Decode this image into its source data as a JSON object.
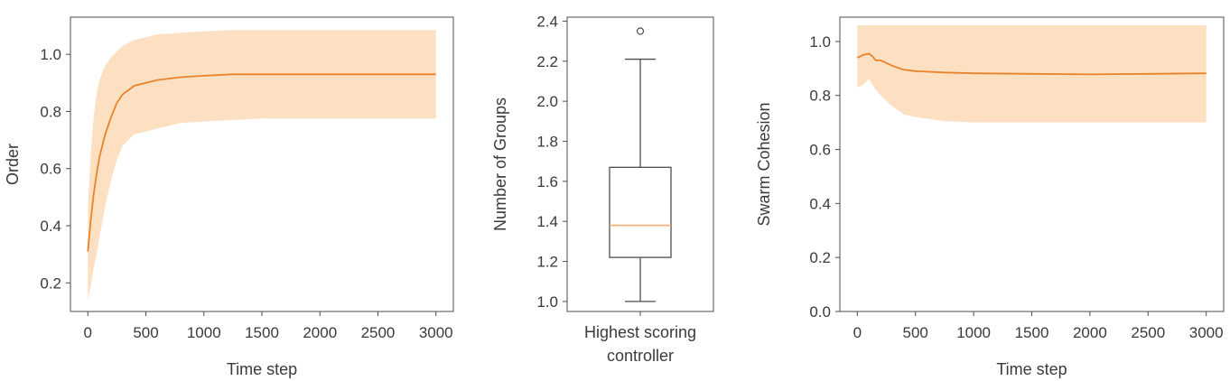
{
  "colors": {
    "line": "#e8832a",
    "band": "#fde0c2",
    "median": "#f5b27a",
    "axis": "#4d4d4d",
    "text": "#3a3a3a"
  },
  "chart_data": [
    {
      "type": "line",
      "xlabel": "Time step",
      "ylabel": "Order",
      "xlim": [
        -150,
        3150
      ],
      "ylim": [
        0.1,
        1.13
      ],
      "xticks": [
        0,
        500,
        1000,
        1500,
        2000,
        2500,
        3000
      ],
      "yticks": [
        0.2,
        0.4,
        0.6,
        0.8,
        1.0
      ],
      "x": [
        0,
        25,
        50,
        75,
        100,
        150,
        200,
        250,
        300,
        400,
        500,
        600,
        800,
        1000,
        1250,
        1500,
        2000,
        2500,
        3000
      ],
      "mean": [
        0.31,
        0.42,
        0.51,
        0.58,
        0.64,
        0.72,
        0.78,
        0.83,
        0.86,
        0.89,
        0.9,
        0.91,
        0.92,
        0.925,
        0.93,
        0.93,
        0.93,
        0.93,
        0.93
      ],
      "upper": [
        0.47,
        0.65,
        0.78,
        0.86,
        0.91,
        0.96,
        0.99,
        1.01,
        1.03,
        1.05,
        1.06,
        1.07,
        1.075,
        1.08,
        1.085,
        1.085,
        1.085,
        1.085,
        1.085
      ],
      "lower": [
        0.14,
        0.19,
        0.25,
        0.3,
        0.36,
        0.47,
        0.56,
        0.63,
        0.68,
        0.72,
        0.73,
        0.74,
        0.76,
        0.765,
        0.77,
        0.775,
        0.775,
        0.775,
        0.775
      ],
      "grid": false
    },
    {
      "type": "box",
      "xlabel_lines": [
        "Highest scoring",
        "controller"
      ],
      "ylabel": "Number of Groups",
      "ylim": [
        0.95,
        2.42
      ],
      "yticks": [
        "1.0",
        "1.2",
        "1.4",
        "1.6",
        "1.8",
        "2.0",
        "2.2",
        "2.4"
      ],
      "box": {
        "min": 1.0,
        "q1": 1.22,
        "median": 1.38,
        "q3": 1.67,
        "max": 2.21,
        "outliers": [
          2.35
        ]
      },
      "grid": false
    },
    {
      "type": "line",
      "xlabel": "Time step",
      "ylabel": "Swarm Cohesion",
      "xlim": [
        -150,
        3150
      ],
      "ylim": [
        0.0,
        1.09
      ],
      "xticks": [
        0,
        500,
        1000,
        1500,
        2000,
        2500,
        3000
      ],
      "yticks": [
        "0.0",
        "0.2",
        "0.4",
        "0.6",
        "0.8",
        "1.0"
      ],
      "x": [
        0,
        50,
        100,
        130,
        160,
        200,
        250,
        300,
        400,
        500,
        750,
        1000,
        1500,
        2000,
        2500,
        3000
      ],
      "mean": [
        0.94,
        0.95,
        0.955,
        0.945,
        0.93,
        0.93,
        0.92,
        0.91,
        0.895,
        0.89,
        0.885,
        0.882,
        0.88,
        0.878,
        0.88,
        0.882
      ],
      "upper": [
        1.06,
        1.06,
        1.06,
        1.06,
        1.06,
        1.06,
        1.06,
        1.06,
        1.06,
        1.06,
        1.06,
        1.06,
        1.06,
        1.06,
        1.06,
        1.06
      ],
      "lower": [
        0.83,
        0.84,
        0.86,
        0.84,
        0.82,
        0.8,
        0.78,
        0.76,
        0.73,
        0.72,
        0.705,
        0.7,
        0.7,
        0.7,
        0.7,
        0.7
      ],
      "grid": false
    }
  ]
}
